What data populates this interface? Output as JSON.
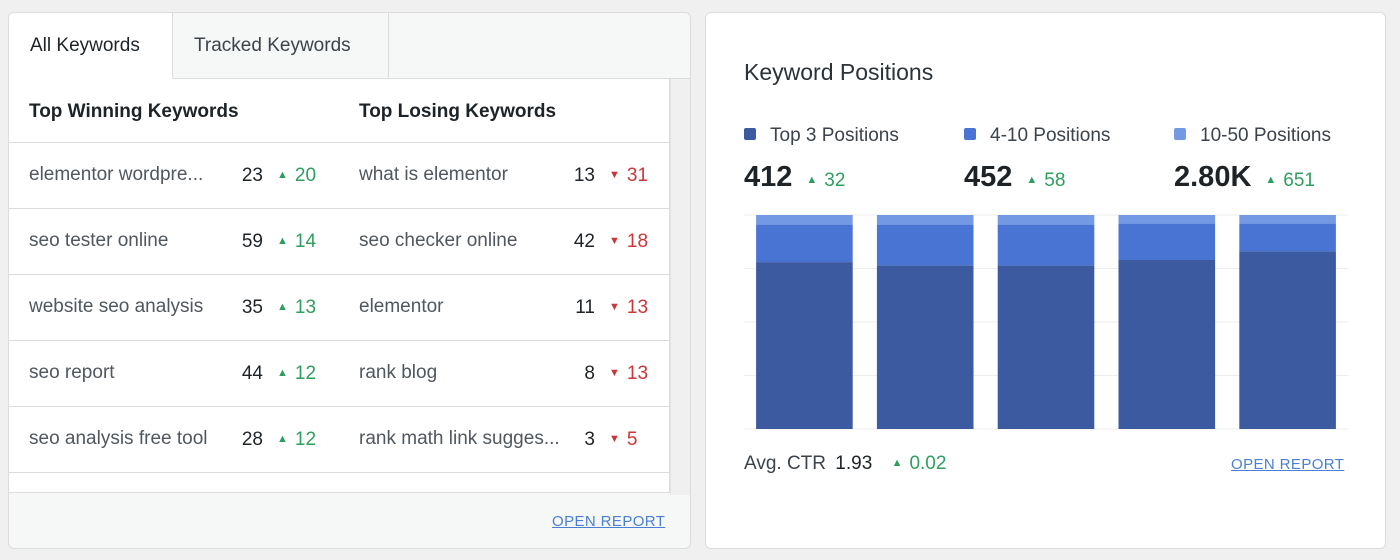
{
  "tabs": [
    {
      "label": "All Keywords",
      "active": true
    },
    {
      "label": "Tracked Keywords",
      "active": false
    }
  ],
  "keywords": {
    "winning_header": "Top Winning Keywords",
    "losing_header": "Top Losing Keywords",
    "winning": [
      {
        "keyword": "elementor wordpre...",
        "position": "23",
        "change": "20"
      },
      {
        "keyword": "seo tester online",
        "position": "59",
        "change": "14"
      },
      {
        "keyword": "website seo analysis",
        "position": "35",
        "change": "13"
      },
      {
        "keyword": "seo report",
        "position": "44",
        "change": "12"
      },
      {
        "keyword": "seo analysis free tool",
        "position": "28",
        "change": "12"
      }
    ],
    "losing": [
      {
        "keyword": "what is elementor",
        "position": "13",
        "change": "31"
      },
      {
        "keyword": "seo checker online",
        "position": "42",
        "change": "18"
      },
      {
        "keyword": "elementor",
        "position": "11",
        "change": "13"
      },
      {
        "keyword": "rank blog",
        "position": "8",
        "change": "13"
      },
      {
        "keyword": "rank math link sugges...",
        "position": "3",
        "change": "5"
      }
    ],
    "open_report": "OPEN REPORT"
  },
  "positions": {
    "title": "Keyword Positions",
    "legend": [
      {
        "label": "Top 3 Positions",
        "value": "412",
        "change": "32",
        "color": "#3b5aa0"
      },
      {
        "label": "4-10 Positions",
        "value": "452",
        "change": "58",
        "color": "#4a74d4"
      },
      {
        "label": "10-50 Positions",
        "value": "2.80K",
        "change": "651",
        "color": "#7399e4"
      }
    ],
    "ctr_label": "Avg. CTR",
    "ctr_value": "1.93",
    "ctr_change": "0.02",
    "open_report": "OPEN REPORT"
  },
  "chart_data": {
    "type": "bar",
    "stacked": true,
    "normalized": true,
    "categories": [
      "",
      "",
      "",
      "",
      ""
    ],
    "series": [
      {
        "name": "Top 3 Positions",
        "color": "#3b5aa0",
        "values": [
          78,
          76.5,
          76.5,
          79,
          83
        ]
      },
      {
        "name": "4-10 Positions",
        "color": "#4a74d4",
        "values": [
          17.5,
          19,
          19,
          17,
          13
        ]
      },
      {
        "name": "10-50 Positions",
        "color": "#7399e4",
        "values": [
          4.5,
          4.5,
          4.5,
          4,
          4
        ]
      }
    ],
    "ylim": [
      0,
      100
    ],
    "grid": true,
    "legend": "top"
  }
}
